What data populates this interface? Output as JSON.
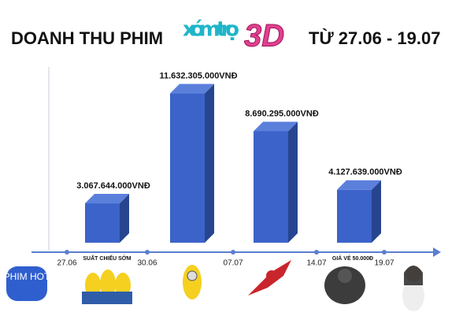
{
  "chart_data": {
    "type": "bar",
    "title": "DOANH THU PHIM",
    "logo": {
      "word": "xóm trọ",
      "mark": "3D"
    },
    "subtitle": "TỪ 27.06 - 19.07",
    "categories": [
      null,
      null,
      null,
      null
    ],
    "values": [
      3067644000,
      11632305000,
      8690295000,
      4127639000
    ],
    "value_labels": [
      "3.067.644.000VNĐ",
      "11.632.305.000VNĐ",
      "8.690.295.000VNĐ",
      "4.127.639.000VNĐ"
    ],
    "color": "#3b63c9",
    "ylim": [
      0,
      14000000000
    ],
    "timeline": {
      "dates": [
        "27.06",
        "30.06",
        "07.07",
        "14.07",
        "19.07"
      ],
      "notes": [
        "SUẤT CHIẾU SỚM",
        "GIÁ VÉ 50.000Đ"
      ]
    },
    "side_label": "PHIM HOT"
  }
}
